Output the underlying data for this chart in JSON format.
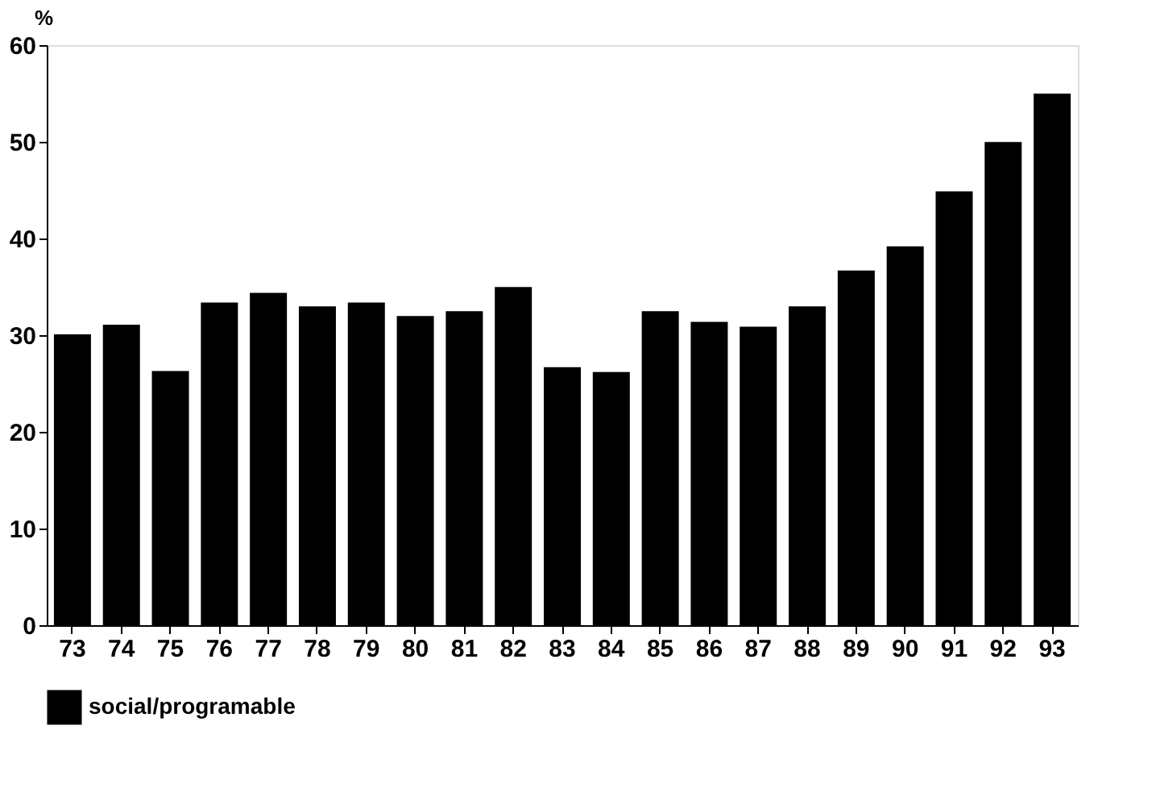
{
  "chart_data": {
    "type": "bar",
    "ylabel": "%",
    "categories": [
      "73",
      "74",
      "75",
      "76",
      "77",
      "78",
      "79",
      "80",
      "81",
      "82",
      "83",
      "84",
      "85",
      "86",
      "87",
      "88",
      "89",
      "90",
      "91",
      "92",
      "93"
    ],
    "series": [
      {
        "name": "social/programable",
        "color": "#000000",
        "values": [
          30,
          31,
          26.2,
          33.3,
          34.3,
          32.9,
          33.3,
          31.9,
          32.4,
          34.9,
          26.6,
          26.1,
          32.4,
          31.3,
          30.8,
          32.9,
          36.6,
          39.1,
          44.8,
          49.9,
          54.9
        ]
      }
    ],
    "ylim": [
      0,
      60
    ],
    "yticks": [
      0,
      10,
      20,
      30,
      40,
      50,
      60
    ],
    "grid": false,
    "legend": "bottom"
  }
}
